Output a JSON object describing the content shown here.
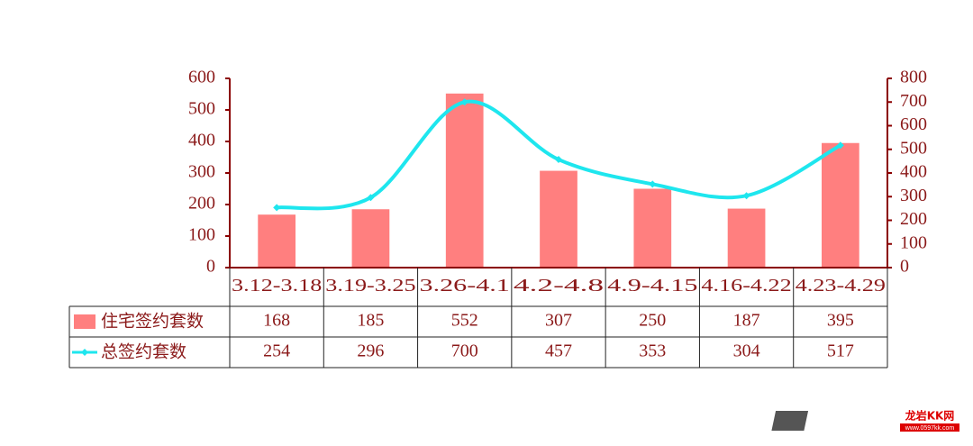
{
  "chart_data": {
    "type": "bar-line",
    "categories": [
      "3.12-3.18",
      "3.19-3.25",
      "3.26-4.1",
      "4.2-4.8",
      "4.9-4.15",
      "4.16-4.22",
      "4.23-4.29"
    ],
    "series": [
      {
        "name": "住宅签约套数",
        "type": "bar",
        "color": "#ff7f7f",
        "values": [
          168,
          185,
          552,
          307,
          250,
          187,
          395
        ]
      },
      {
        "name": "总签约套数",
        "type": "line",
        "axis": "y2",
        "color": "#1ee6ee",
        "values": [
          254,
          296,
          700,
          457,
          353,
          304,
          517
        ]
      }
    ],
    "ylim": [
      0,
      600
    ],
    "yticks": [
      0,
      100,
      200,
      300,
      400,
      500,
      600
    ],
    "y2lim": [
      0,
      800
    ],
    "y2ticks": [
      0,
      100,
      200,
      300,
      400,
      500,
      600,
      700,
      800
    ],
    "data_table": true,
    "watermark": {
      "logo": "KK",
      "name": "龙岩KK网",
      "url": "www.0597kk.com"
    }
  }
}
